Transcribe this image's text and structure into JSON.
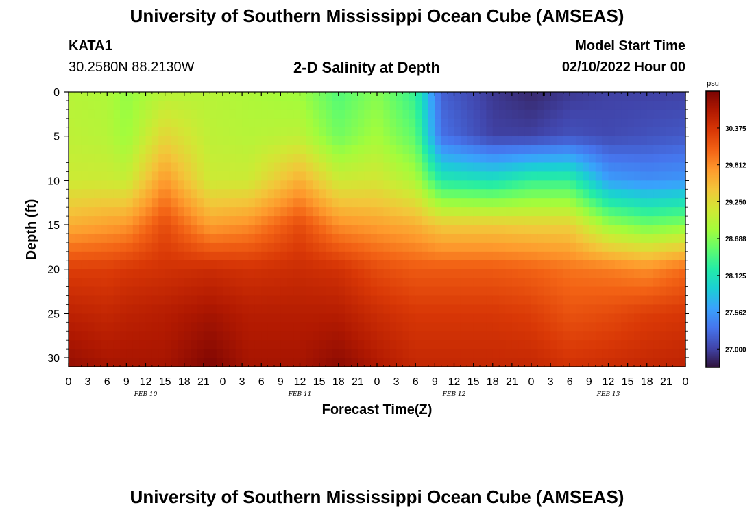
{
  "header": {
    "title": "University of Southern Mississippi Ocean Cube (AMSEAS)",
    "station_id": "KATA1",
    "coords": "30.2580N  88.2130W",
    "subtitle": "2-D Salinity at Depth",
    "start_label": "Model Start Time",
    "start_value": "02/10/2022 Hour 00"
  },
  "footer": {
    "title": "University of Southern Mississippi Ocean Cube (AMSEAS)"
  },
  "chart_data": {
    "type": "heatmap",
    "title": "2-D Salinity at Depth",
    "xlabel": "Forecast Time(Z)",
    "ylabel": "Depth (ft)",
    "x_range_hours": [
      0,
      96
    ],
    "x_tick_labels": [
      "0",
      "3",
      "6",
      "9",
      "12",
      "15",
      "18",
      "21",
      "0",
      "3",
      "6",
      "9",
      "12",
      "15",
      "18",
      "21",
      "0",
      "3",
      "6",
      "9",
      "12",
      "15",
      "18",
      "21",
      "0",
      "3",
      "6",
      "9",
      "12",
      "15",
      "18",
      "21",
      "0"
    ],
    "date_labels": [
      {
        "label": "FEB 10",
        "hour": 12
      },
      {
        "label": "FEB 11",
        "hour": 36
      },
      {
        "label": "FEB 12",
        "hour": 60
      },
      {
        "label": "FEB 13",
        "hour": 84
      }
    ],
    "ylim": [
      31,
      0
    ],
    "y_ticks": [
      0,
      5,
      10,
      15,
      20,
      25,
      30
    ],
    "colorbar": {
      "units": "psu",
      "min": 26.72,
      "max": 30.94,
      "tick_labels": [
        "30.375",
        "29.812",
        "29.250",
        "28.688",
        "28.125",
        "27.562",
        "27.000"
      ],
      "tick_values": [
        30.375,
        29.812,
        29.25,
        28.688,
        28.125,
        27.562,
        27.0
      ],
      "colors": [
        "#30123b",
        "#4145ab",
        "#4675ed",
        "#39a2fc",
        "#1bcfd4",
        "#24eca6",
        "#61fc6c",
        "#a4fc3b",
        "#d1e834",
        "#f3c63a",
        "#fe9b2d",
        "#f36315",
        "#d93806",
        "#b11901",
        "#7a0403"
      ]
    },
    "depth_points": [
      0,
      5,
      10,
      15,
      20,
      25,
      31
    ],
    "columns": [
      {
        "hour": 0,
        "salinity": [
          28.95,
          29.0,
          29.1,
          29.6,
          30.3,
          30.55,
          30.8
        ]
      },
      {
        "hour": 6,
        "salinity": [
          28.9,
          28.95,
          29.1,
          29.7,
          30.3,
          30.5,
          30.7
        ]
      },
      {
        "hour": 9,
        "salinity": [
          28.75,
          28.8,
          29.05,
          29.75,
          30.35,
          30.55,
          30.7
        ]
      },
      {
        "hour": 15,
        "salinity": [
          28.95,
          29.3,
          29.75,
          30.2,
          30.4,
          30.6,
          30.7
        ]
      },
      {
        "hour": 22,
        "salinity": [
          28.95,
          29.0,
          29.1,
          29.7,
          30.45,
          30.7,
          30.92
        ]
      },
      {
        "hour": 28,
        "salinity": [
          28.9,
          28.95,
          29.1,
          29.8,
          30.4,
          30.6,
          30.7
        ]
      },
      {
        "hour": 36,
        "salinity": [
          28.8,
          29.0,
          29.6,
          30.2,
          30.45,
          30.6,
          30.7
        ]
      },
      {
        "hour": 42,
        "salinity": [
          28.45,
          28.6,
          29.1,
          29.8,
          30.4,
          30.6,
          30.85
        ]
      },
      {
        "hour": 48,
        "salinity": [
          28.7,
          28.85,
          29.15,
          29.7,
          30.2,
          30.45,
          30.65
        ]
      },
      {
        "hour": 54,
        "salinity": [
          28.3,
          28.5,
          28.9,
          29.6,
          30.1,
          30.35,
          30.5
        ]
      },
      {
        "hour": 58,
        "salinity": [
          27.2,
          27.3,
          28.2,
          29.4,
          30.1,
          30.35,
          30.5
        ]
      },
      {
        "hour": 66,
        "salinity": [
          26.95,
          27.0,
          28.1,
          29.4,
          30.1,
          30.35,
          30.5
        ]
      },
      {
        "hour": 72,
        "salinity": [
          26.85,
          27.0,
          28.3,
          29.35,
          30.05,
          30.3,
          30.5
        ]
      },
      {
        "hour": 78,
        "salinity": [
          26.95,
          27.1,
          28.3,
          29.35,
          29.95,
          30.15,
          30.4
        ]
      },
      {
        "hour": 84,
        "salinity": [
          27.0,
          27.05,
          27.6,
          28.8,
          29.9,
          30.2,
          30.45
        ]
      },
      {
        "hour": 90,
        "salinity": [
          27.0,
          27.1,
          27.5,
          28.6,
          29.8,
          30.3,
          30.5
        ]
      },
      {
        "hour": 96,
        "salinity": [
          27.0,
          27.15,
          27.55,
          28.7,
          30.0,
          30.35,
          30.55
        ]
      }
    ],
    "marker": {
      "hour": 74,
      "depth": 0
    }
  }
}
